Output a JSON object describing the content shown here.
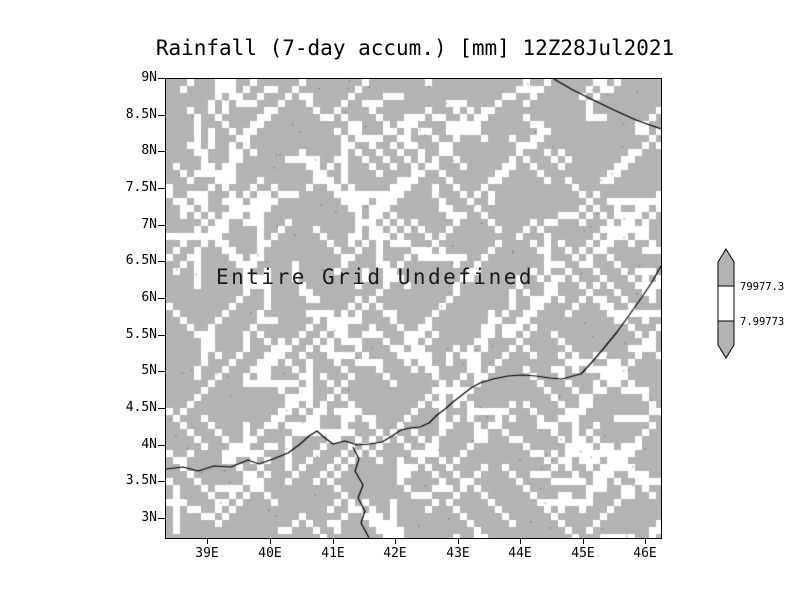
{
  "title": "Rainfall (7-day accum.) [mm] 12Z28Jul2021",
  "map": {
    "message": "Entire Grid Undefined"
  },
  "axes": {
    "y_ticks": [
      "9N",
      "8.5N",
      "8N",
      "7.5N",
      "7N",
      "6.5N",
      "6N",
      "5.5N",
      "5N",
      "4.5N",
      "4N",
      "3.5N",
      "3N"
    ],
    "x_ticks": [
      "39E",
      "40E",
      "41E",
      "42E",
      "43E",
      "44E",
      "45E",
      "46E"
    ]
  },
  "colorbar": {
    "labels": [
      "79977.3",
      "7.99773"
    ]
  },
  "colors": {
    "background": "#ffffff",
    "grid_fill": "#b3b3b3",
    "undefined_hatch": "#ffffff",
    "line": "#000000"
  },
  "chart_data": {
    "type": "heatmap",
    "title": "Rainfall (7-day accum.) [mm] 12Z28Jul2021",
    "variable": "Rainfall (7-day accum.) [mm]",
    "valid_time": "12Z28Jul2021",
    "status": "Entire Grid Undefined",
    "x_ticks": [
      "39E",
      "40E",
      "41E",
      "42E",
      "43E",
      "44E",
      "45E",
      "46E"
    ],
    "y_ticks": [
      "9N",
      "8.5N",
      "8N",
      "7.5N",
      "7N",
      "6.5N",
      "6N",
      "5.5N",
      "5N",
      "4.5N",
      "4N",
      "3.5N",
      "3N"
    ],
    "x_range": [
      "39E",
      "46E"
    ],
    "y_range": [
      "3N",
      "9N"
    ],
    "colorbar_levels": [
      7.99773,
      79977.3
    ],
    "values": null,
    "legend_position": "right",
    "grid": false
  }
}
